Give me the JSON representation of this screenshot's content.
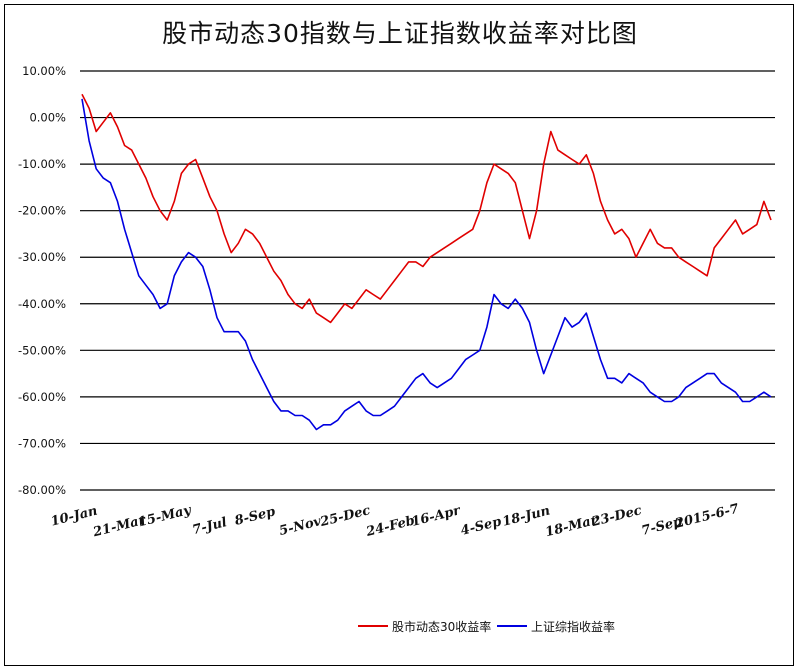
{
  "chart_data": {
    "type": "line",
    "title": "股市动态30指数与上证指数收益率对比图",
    "xlabel": "",
    "ylabel": "",
    "ylim": [
      -80,
      10
    ],
    "y_ticks": [
      "10.00%",
      "0.00%",
      "-10.00%",
      "-20.00%",
      "-30.00%",
      "-40.00%",
      "-50.00%",
      "-60.00%",
      "-70.00%",
      "-80.00%"
    ],
    "x_tick_labels": [
      "10-Jan",
      "21-Mar",
      "15-May",
      "7-Jul",
      "8-Sep",
      "5-Nov",
      "25-Dec",
      "24-Feb",
      "16-Apr",
      "4-Sep",
      "18-Jun",
      "18-Mar",
      "23-Dec",
      "7-Sep",
      "2015-6-7"
    ],
    "grid": "horizontal",
    "legend_position": "bottom",
    "colors": {
      "series1": "#e00000",
      "series2": "#0000e0"
    },
    "series": [
      {
        "name": "股市动态30收益率",
        "values": [
          5,
          2,
          -3,
          -1,
          1,
          -2,
          -6,
          -7,
          -10,
          -13,
          -17,
          -20,
          -22,
          -18,
          -12,
          -10,
          -9,
          -13,
          -17,
          -20,
          -25,
          -29,
          -27,
          -24,
          -25,
          -27,
          -30,
          -33,
          -35,
          -38,
          -40,
          -41,
          -39,
          -42,
          -43,
          -44,
          -42,
          -40,
          -41,
          -39,
          -37,
          -38,
          -39,
          -37,
          -35,
          -33,
          -31,
          -31,
          -32,
          -30,
          -29,
          -28,
          -27,
          -26,
          -25,
          -24,
          -20,
          -14,
          -10,
          -11,
          -12,
          -14,
          -20,
          -26,
          -20,
          -10,
          -3,
          -7,
          -8,
          -9,
          -10,
          -8,
          -12,
          -18,
          -22,
          -25,
          -24,
          -26,
          -30,
          -27,
          -24,
          -27,
          -28,
          -28,
          -30,
          -31,
          -32,
          -33,
          -34,
          -28,
          -26,
          -24,
          -22,
          -25,
          -24,
          -23,
          -18,
          -22
        ]
      },
      {
        "name": "上证综指收益率",
        "values": [
          4,
          -5,
          -11,
          -13,
          -14,
          -18,
          -24,
          -29,
          -34,
          -36,
          -38,
          -41,
          -40,
          -34,
          -31,
          -29,
          -30,
          -32,
          -37,
          -43,
          -46,
          -46,
          -46,
          -48,
          -52,
          -55,
          -58,
          -61,
          -63,
          -63,
          -64,
          -64,
          -65,
          -67,
          -66,
          -66,
          -65,
          -63,
          -62,
          -61,
          -63,
          -64,
          -64,
          -63,
          -62,
          -60,
          -58,
          -56,
          -55,
          -57,
          -58,
          -57,
          -56,
          -54,
          -52,
          -51,
          -50,
          -45,
          -38,
          -40,
          -41,
          -39,
          -41,
          -44,
          -50,
          -55,
          -51,
          -47,
          -43,
          -45,
          -44,
          -42,
          -47,
          -52,
          -56,
          -56,
          -57,
          -55,
          -56,
          -57,
          -59,
          -60,
          -61,
          -61,
          -60,
          -58,
          -57,
          -56,
          -55,
          -55,
          -57,
          -58,
          -59,
          -61,
          -61,
          -60,
          -59,
          -60
        ]
      }
    ]
  }
}
